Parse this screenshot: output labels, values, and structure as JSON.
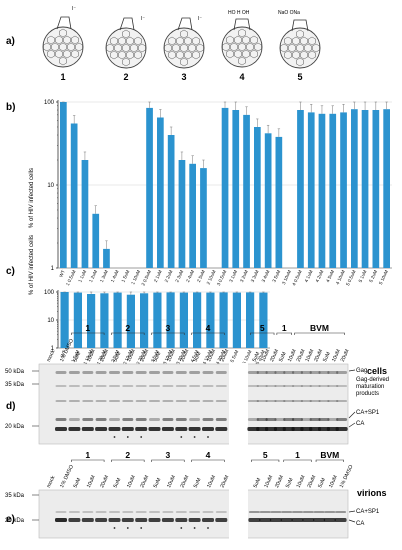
{
  "figure": {
    "panel_labels": [
      "a)",
      "b)",
      "c)",
      "d)",
      "e)"
    ],
    "compounds": [
      {
        "label": "1",
        "substituents": "I⁻"
      },
      {
        "label": "2",
        "substituents": "I⁻"
      },
      {
        "label": "3",
        "substituents": "I⁻"
      },
      {
        "label": "4",
        "substituents": "HO  H  OH"
      },
      {
        "label": "5",
        "substituents": "NaO  ONa"
      }
    ],
    "ylabel": "%  of HIV infected cells",
    "blot": {
      "cells_title": "cells",
      "virions_title": "virions",
      "markers_d": [
        "50 kDa",
        "35 kDa",
        "20 kDa"
      ],
      "markers_e": [
        "35 kDa",
        "20 kDa"
      ],
      "annot_d": [
        "Gag",
        "Gag-derived",
        "maturation",
        "products",
        "CA+SP1",
        "CA"
      ],
      "annot_e": [
        "CA+SP1",
        "CA"
      ],
      "lanes_d_left": [
        "mock",
        "1% DMSO",
        "5uM",
        "10uM",
        "20uM",
        "5uM",
        "10uM",
        "20uM",
        "5uM",
        "10uM",
        "20uM",
        "5uM",
        "10uM",
        "20uM"
      ],
      "lanes_d_right": [
        "5uM",
        "10uM",
        "20uM",
        "5uM",
        "10uM",
        "20uM",
        "10uM",
        "20uM",
        "5uM",
        "10uM",
        "20uM"
      ],
      "groups_d": [
        "1",
        "2",
        "3",
        "4",
        "5",
        "1",
        "BVM"
      ],
      "lanes_e_left": [
        "mock",
        "1% DMSO",
        "5uM",
        "10uM",
        "20uM",
        "5uM",
        "10uM",
        "20uM",
        "5uM",
        "10uM",
        "20uM",
        "5uM",
        "10uM",
        "20uM"
      ],
      "lanes_e_right": [
        "5uM",
        "10uM",
        "20uM",
        "5uM",
        "10uM",
        "20uM",
        "5uM",
        "10uM",
        "1% DMSO"
      ],
      "groups_e": [
        "1",
        "2",
        "3",
        "4",
        "5",
        "1",
        "BVM"
      ]
    }
  },
  "chart_data": [
    {
      "type": "bar",
      "log_y": true,
      "ylim": [
        1,
        100
      ],
      "yticks": [
        "1",
        "10",
        "100"
      ],
      "ylabel": "%  of HIV infected cells",
      "color": "#2b93cf",
      "categories": [
        "WT",
        "1 0.5uM",
        "1 1uM",
        "1 2uM",
        "1 3uM",
        "1 4uM",
        "1 5uM",
        "1 10uM",
        "2 0.5uM",
        "2 1uM",
        "2 2uM",
        "2 3uM",
        "2 4uM",
        "2 5uM",
        "2 10uM",
        "3 0.5uM",
        "3 1uM",
        "3 2uM",
        "3 3uM",
        "3 4uM",
        "3 5uM",
        "3 10uM",
        "4 0.5uM",
        "4 1uM",
        "4 2uM",
        "4 5uM",
        "4 10uM",
        "5 0.5uM",
        "5 1uM",
        "5 2uM",
        "5 10uM"
      ],
      "values": [
        100,
        55,
        20,
        4.5,
        1.7,
        0,
        0,
        0,
        85,
        65,
        40,
        20,
        18,
        16,
        0,
        85,
        80,
        70,
        50,
        42,
        38,
        0,
        80,
        75,
        72,
        72,
        75,
        82,
        80,
        80,
        82
      ]
    },
    {
      "type": "bar",
      "log_y": true,
      "ylim": [
        1,
        100
      ],
      "yticks": [
        "1",
        "10",
        "100"
      ],
      "ylabel": "%  of HIV infected cells",
      "color": "#2b93cf",
      "categories": [
        "WT",
        "1 5uM",
        "1 10uM",
        "1 20uM",
        "2 5uM",
        "2 10uM",
        "2 20uM",
        "3 5uM",
        "3 10uM",
        "3 20uM",
        "4 5uM",
        "4 10uM",
        "4 20uM",
        "5 5uM",
        "5 10uM",
        "5 20uM"
      ],
      "values": [
        100,
        95,
        85,
        90,
        95,
        80,
        90,
        95,
        97,
        95,
        97,
        95,
        97,
        95,
        97,
        95
      ]
    }
  ]
}
